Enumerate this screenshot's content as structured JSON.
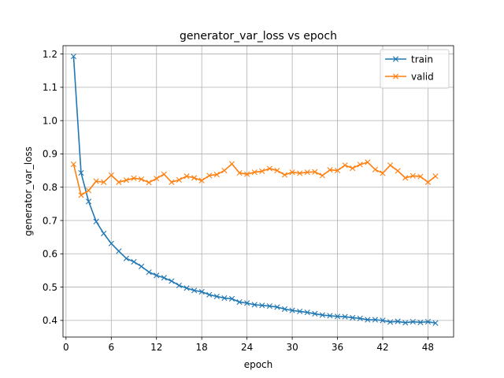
{
  "chart_data": {
    "type": "line",
    "title": "generator_var_loss vs epoch",
    "xlabel": "epoch",
    "ylabel": "generator_var_loss",
    "xlim": [
      -0.4,
      51.4
    ],
    "ylim": [
      0.35,
      1.225
    ],
    "xticks": [
      0,
      6,
      12,
      18,
      24,
      30,
      36,
      42,
      48
    ],
    "yticks": [
      0.4,
      0.5,
      0.6,
      0.7,
      0.8,
      0.9,
      1.0,
      1.1,
      1.2
    ],
    "ytick_labels": [
      "0.4",
      "0.5",
      "0.6",
      "0.7",
      "0.8",
      "0.9",
      "1.0",
      "1.1",
      "1.2"
    ],
    "grid": true,
    "legend": "top-right",
    "marker": "x",
    "x": [
      1,
      2,
      3,
      4,
      5,
      6,
      7,
      8,
      9,
      10,
      11,
      12,
      13,
      14,
      15,
      16,
      17,
      18,
      19,
      20,
      21,
      22,
      23,
      24,
      25,
      26,
      27,
      28,
      29,
      30,
      31,
      32,
      33,
      34,
      35,
      36,
      37,
      38,
      39,
      40,
      41,
      42,
      43,
      44,
      45,
      46,
      47,
      48,
      49
    ],
    "series": [
      {
        "name": "train",
        "color": "#1f77b4",
        "values": [
          1.193,
          0.843,
          0.757,
          0.697,
          0.661,
          0.631,
          0.608,
          0.586,
          0.576,
          0.562,
          0.545,
          0.535,
          0.528,
          0.518,
          0.505,
          0.497,
          0.49,
          0.486,
          0.477,
          0.472,
          0.467,
          0.465,
          0.455,
          0.452,
          0.447,
          0.445,
          0.443,
          0.44,
          0.434,
          0.43,
          0.427,
          0.424,
          0.42,
          0.416,
          0.414,
          0.412,
          0.411,
          0.408,
          0.406,
          0.402,
          0.402,
          0.4,
          0.395,
          0.397,
          0.393,
          0.396,
          0.394,
          0.396,
          0.392
        ]
      },
      {
        "name": "valid",
        "color": "#ff7f0e",
        "values": [
          0.869,
          0.776,
          0.79,
          0.818,
          0.815,
          0.836,
          0.815,
          0.821,
          0.827,
          0.824,
          0.814,
          0.826,
          0.839,
          0.815,
          0.822,
          0.833,
          0.828,
          0.82,
          0.835,
          0.838,
          0.85,
          0.87,
          0.843,
          0.839,
          0.845,
          0.848,
          0.856,
          0.85,
          0.837,
          0.845,
          0.842,
          0.845,
          0.846,
          0.835,
          0.852,
          0.85,
          0.866,
          0.857,
          0.868,
          0.875,
          0.853,
          0.842,
          0.866,
          0.849,
          0.828,
          0.834,
          0.832,
          0.815,
          0.833
        ]
      }
    ]
  }
}
